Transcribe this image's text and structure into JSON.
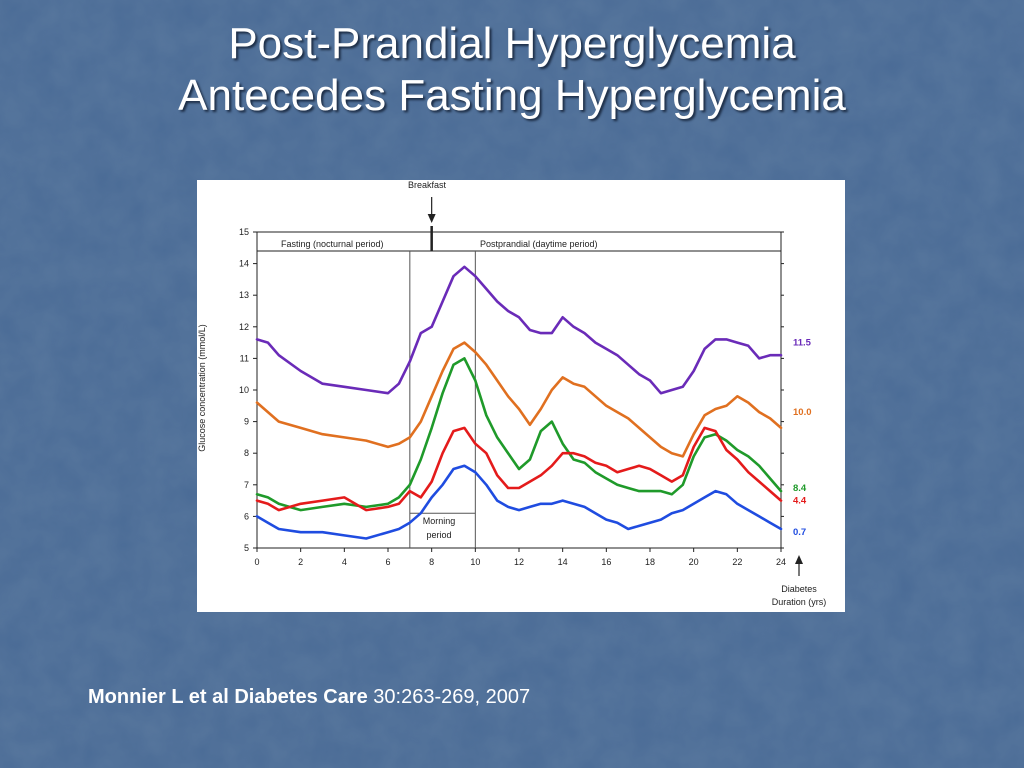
{
  "slide": {
    "title_line1": "Post-Prandial Hyperglycemia",
    "title_line2": "Antecedes Fasting Hyperglycemia",
    "citation_bold": "Monnier L et al Diabetes Care",
    "citation_rest": " 30:263-269, 2007",
    "background_color": "#4a6b96"
  },
  "chart_data": {
    "type": "line",
    "title": "",
    "xlabel": "",
    "ylabel": "Glucose concentration (mmol/L)",
    "xlim": [
      0,
      24
    ],
    "ylim": [
      5,
      15
    ],
    "x_ticks": [
      0,
      2,
      4,
      6,
      8,
      10,
      12,
      14,
      16,
      18,
      20,
      22,
      24
    ],
    "y_ticks": [
      5,
      6,
      7,
      8,
      9,
      10,
      11,
      12,
      13,
      14,
      15
    ],
    "grid": false,
    "annotations": {
      "breakfast": "Breakfast",
      "fasting": "Fasting (nocturnal period)",
      "postprandial": "Postprandial (daytime period)",
      "morning": [
        "Morning",
        "period"
      ],
      "diabetes_duration": [
        "Diabetes",
        "Duration (yrs)"
      ]
    },
    "series": [
      {
        "name": "11.5",
        "color": "#6a2bb8",
        "x": [
          0,
          0.5,
          1,
          2,
          3,
          4,
          5,
          6,
          6.5,
          7,
          7.5,
          8,
          8.5,
          9,
          9.5,
          10,
          10.5,
          11,
          11.5,
          12,
          12.5,
          13,
          13.5,
          14,
          14.5,
          15,
          15.5,
          16,
          16.5,
          17,
          17.5,
          18,
          18.5,
          19,
          19.5,
          20,
          20.5,
          21,
          21.5,
          22,
          22.5,
          23,
          23.5,
          24
        ],
        "y": [
          11.6,
          11.5,
          11.1,
          10.6,
          10.2,
          10.1,
          10.0,
          9.9,
          10.2,
          10.9,
          11.8,
          12.0,
          12.8,
          13.6,
          13.9,
          13.6,
          13.2,
          12.8,
          12.5,
          12.3,
          11.9,
          11.8,
          11.8,
          12.3,
          12.0,
          11.8,
          11.5,
          11.3,
          11.1,
          10.8,
          10.5,
          10.3,
          9.9,
          10.0,
          10.1,
          10.6,
          11.3,
          11.6,
          11.6,
          11.5,
          11.4,
          11.0,
          11.1,
          11.1
        ]
      },
      {
        "name": "10.0",
        "color": "#e07020",
        "x": [
          0,
          0.5,
          1,
          2,
          3,
          4,
          5,
          6,
          6.5,
          7,
          7.5,
          8,
          8.5,
          9,
          9.5,
          10,
          10.5,
          11,
          11.5,
          12,
          12.5,
          13,
          13.5,
          14,
          14.5,
          15,
          15.5,
          16,
          16.5,
          17,
          17.5,
          18,
          18.5,
          19,
          19.5,
          20,
          20.5,
          21,
          21.5,
          22,
          22.5,
          23,
          23.5,
          24
        ],
        "y": [
          9.6,
          9.3,
          9.0,
          8.8,
          8.6,
          8.5,
          8.4,
          8.2,
          8.3,
          8.5,
          9.0,
          9.8,
          10.6,
          11.3,
          11.5,
          11.2,
          10.8,
          10.3,
          9.8,
          9.4,
          8.9,
          9.4,
          10.0,
          10.4,
          10.2,
          10.1,
          9.8,
          9.5,
          9.3,
          9.1,
          8.8,
          8.5,
          8.2,
          8.0,
          7.9,
          8.6,
          9.2,
          9.4,
          9.5,
          9.8,
          9.6,
          9.3,
          9.1,
          8.8
        ]
      },
      {
        "name": "8.4",
        "color": "#1f9a2a",
        "x": [
          0,
          0.5,
          1,
          2,
          3,
          4,
          5,
          6,
          6.5,
          7,
          7.5,
          8,
          8.5,
          9,
          9.5,
          10,
          10.5,
          11,
          11.5,
          12,
          12.5,
          13,
          13.5,
          14,
          14.5,
          15,
          15.5,
          16,
          16.5,
          17,
          17.5,
          18,
          18.5,
          19,
          19.5,
          20,
          20.5,
          21,
          21.5,
          22,
          22.5,
          23,
          23.5,
          24
        ],
        "y": [
          6.7,
          6.6,
          6.4,
          6.2,
          6.3,
          6.4,
          6.3,
          6.4,
          6.6,
          7.0,
          7.8,
          8.8,
          9.9,
          10.8,
          11.0,
          10.3,
          9.2,
          8.5,
          8.0,
          7.5,
          7.8,
          8.7,
          9.0,
          8.3,
          7.8,
          7.7,
          7.4,
          7.2,
          7.0,
          6.9,
          6.8,
          6.8,
          6.8,
          6.7,
          7.0,
          7.9,
          8.5,
          8.6,
          8.4,
          8.1,
          7.9,
          7.6,
          7.2,
          6.8
        ]
      },
      {
        "name": "4.4",
        "color": "#e41b1b",
        "x": [
          0,
          0.5,
          1,
          2,
          3,
          4,
          5,
          6,
          6.5,
          7,
          7.5,
          8,
          8.5,
          9,
          9.5,
          10,
          10.5,
          11,
          11.5,
          12,
          12.5,
          13,
          13.5,
          14,
          14.5,
          15,
          15.5,
          16,
          16.5,
          17,
          17.5,
          18,
          18.5,
          19,
          19.5,
          20,
          20.5,
          21,
          21.5,
          22,
          22.5,
          23,
          23.5,
          24
        ],
        "y": [
          6.5,
          6.4,
          6.2,
          6.4,
          6.5,
          6.6,
          6.2,
          6.3,
          6.4,
          6.8,
          6.6,
          7.1,
          8.0,
          8.7,
          8.8,
          8.3,
          8.0,
          7.3,
          6.9,
          6.9,
          7.1,
          7.3,
          7.6,
          8.0,
          8.0,
          7.9,
          7.7,
          7.6,
          7.4,
          7.5,
          7.6,
          7.5,
          7.3,
          7.1,
          7.3,
          8.2,
          8.8,
          8.7,
          8.1,
          7.8,
          7.4,
          7.1,
          6.8,
          6.5
        ]
      },
      {
        "name": "0.7",
        "color": "#1f4ce0",
        "x": [
          0,
          0.5,
          1,
          2,
          3,
          4,
          5,
          6,
          6.5,
          7,
          7.5,
          8,
          8.5,
          9,
          9.5,
          10,
          10.5,
          11,
          11.5,
          12,
          12.5,
          13,
          13.5,
          14,
          14.5,
          15,
          15.5,
          16,
          16.5,
          17,
          17.5,
          18,
          18.5,
          19,
          19.5,
          20,
          20.5,
          21,
          21.5,
          22,
          22.5,
          23,
          23.5,
          24
        ],
        "y": [
          6.0,
          5.8,
          5.6,
          5.5,
          5.5,
          5.4,
          5.3,
          5.5,
          5.6,
          5.8,
          6.1,
          6.6,
          7.0,
          7.5,
          7.6,
          7.4,
          7.0,
          6.5,
          6.3,
          6.2,
          6.3,
          6.4,
          6.4,
          6.5,
          6.4,
          6.3,
          6.1,
          5.9,
          5.8,
          5.6,
          5.7,
          5.8,
          5.9,
          6.1,
          6.2,
          6.4,
          6.6,
          6.8,
          6.7,
          6.4,
          6.2,
          6.0,
          5.8,
          5.6
        ]
      }
    ]
  }
}
